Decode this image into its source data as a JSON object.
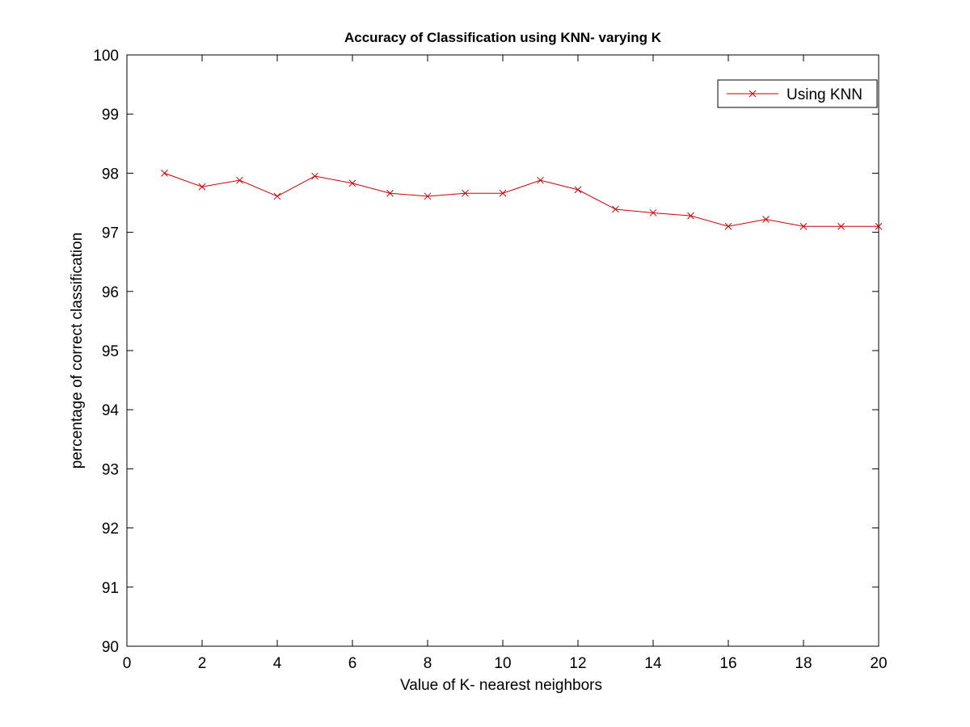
{
  "chart_data": {
    "type": "line",
    "title": "Accuracy of Classification using KNN- varying K",
    "xlabel": "Value of K- nearest neighbors",
    "ylabel": "percentage of correct classification",
    "xlim": [
      0,
      20
    ],
    "ylim": [
      90,
      100
    ],
    "xticks": [
      0,
      2,
      4,
      6,
      8,
      10,
      12,
      14,
      16,
      18,
      20
    ],
    "yticks": [
      90,
      91,
      92,
      93,
      94,
      95,
      96,
      97,
      98,
      99,
      100
    ],
    "grid": false,
    "legend_position": "top-right",
    "series": [
      {
        "name": "Using KNN",
        "color": "#cc0000",
        "marker": "x",
        "x": [
          1,
          2,
          3,
          4,
          5,
          6,
          7,
          8,
          9,
          10,
          11,
          12,
          13,
          14,
          15,
          16,
          17,
          18,
          19,
          20
        ],
        "y": [
          98.0,
          97.77,
          97.88,
          97.61,
          97.95,
          97.83,
          97.66,
          97.61,
          97.66,
          97.66,
          97.88,
          97.72,
          97.39,
          97.33,
          97.28,
          97.1,
          97.22,
          97.1,
          97.1,
          97.1
        ]
      }
    ]
  }
}
